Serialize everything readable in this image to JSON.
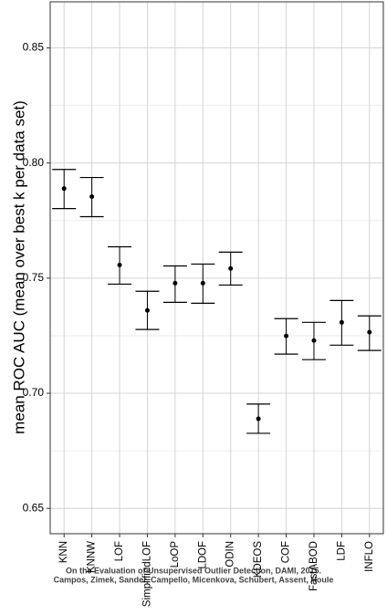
{
  "chart_data": {
    "type": "errorbar",
    "ylabel": "mean ROC AUC (mean over best k per data set)",
    "annotation": [
      "On the Evaluation of Unsupervised Outlier Detection, DAMI, 2015.",
      "Campos, Zimek, Sander, Campello, Micenkova, Schubert, Assent, Houle"
    ],
    "categories": [
      "KNN",
      "KNNW",
      "LOF",
      "SimplifiedLOF",
      "LoOP",
      "LDOF",
      "ODIN",
      "KDEOS",
      "COF",
      "FastABOD",
      "LDF",
      "INFLO"
    ],
    "values": [
      0.7889,
      0.7854,
      0.7557,
      0.736,
      0.7478,
      0.7478,
      0.7542,
      0.6889,
      0.7249,
      0.7229,
      0.7308,
      0.7265
    ],
    "lower": [
      0.7802,
      0.7767,
      0.7474,
      0.7277,
      0.7395,
      0.7391,
      0.747,
      0.6826,
      0.717,
      0.7146,
      0.7209,
      0.7186
    ],
    "upper": [
      0.7972,
      0.7937,
      0.7636,
      0.7443,
      0.7553,
      0.7561,
      0.7613,
      0.6953,
      0.7324,
      0.7308,
      0.7403,
      0.7336
    ],
    "color": "#000000",
    "ylim": [
      0.639,
      0.87
    ],
    "yticks": [
      {
        "value": 0.65,
        "label": "0.65"
      },
      {
        "value": 0.7,
        "label": "0.70"
      },
      {
        "value": 0.75,
        "label": "0.75"
      },
      {
        "value": 0.8,
        "label": "0.80"
      },
      {
        "value": 0.85,
        "label": "0.85"
      }
    ],
    "yminorticks": [
      0.675,
      0.725,
      0.775,
      0.825
    ],
    "grid": true
  }
}
